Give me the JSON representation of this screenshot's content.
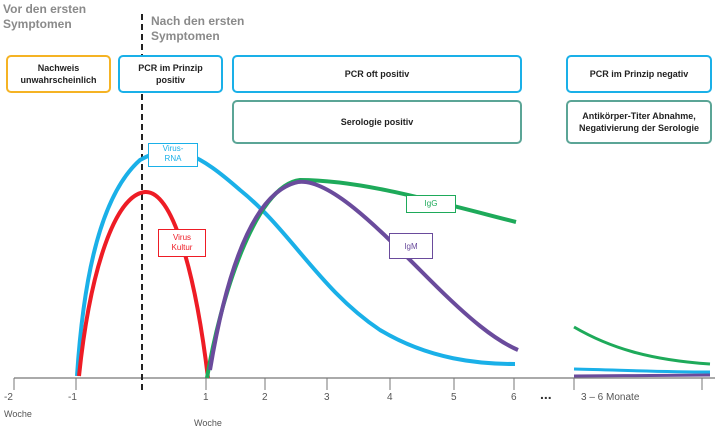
{
  "phases": {
    "before": "Vor den ersten\nSymptomen",
    "after": "Nach den ersten\nSymptomen"
  },
  "boxes": {
    "nachweis": "Nachweis\nunwahrscheinlich",
    "pcr_prinzip_positiv": "PCR im Prinzip\npositiv",
    "pcr_oft_positiv": "PCR oft positiv",
    "serologie_positiv": "Serologie positiv",
    "pcr_prinzip_negativ": "PCR im Prinzip negativ",
    "antikoerper": "Antikörper-Titer Abnahme,\nNegativierung der Serologie"
  },
  "curve_labels": {
    "virus_rna": "Virus-\nRNA",
    "virus_kultur": "Virus\nKultur",
    "igg": "IgG",
    "igm": "IgM"
  },
  "axis": {
    "ticks": [
      "-2",
      "-1",
      "1",
      "2",
      "3",
      "4",
      "5",
      "6"
    ],
    "ellipsis": "...",
    "months_label": "3 – 6 Monate",
    "left_unit": "Woche",
    "bottom_unit": "Woche"
  },
  "colors": {
    "orange": "#f5b324",
    "blue": "#1ab0e8",
    "teal": "#5ba596",
    "red": "#ee1c25",
    "green": "#1eaa5a",
    "purple": "#6a4b9c",
    "axis": "#777777"
  }
}
